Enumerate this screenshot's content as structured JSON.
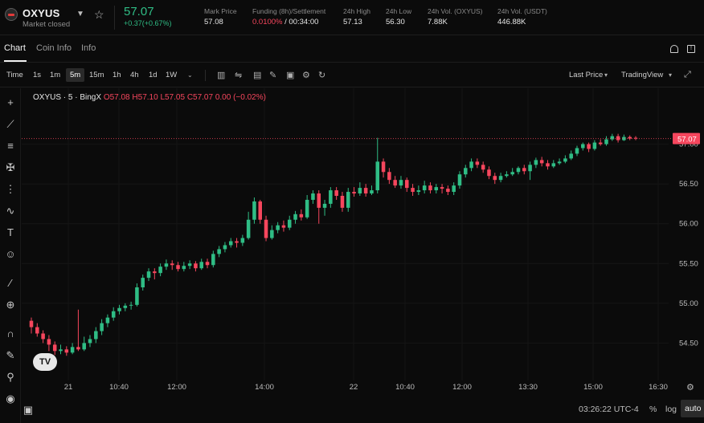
{
  "header": {
    "symbol": "OXYUS",
    "market_status": "Market closed",
    "last_price": "57.07",
    "change": "+0.37(+0.67%)",
    "stats": [
      {
        "label": "Mark Price",
        "value": "57.08"
      },
      {
        "label": "Funding (8h)/Settlement",
        "value_red": "0.0100%",
        "value": " / 00:34:00"
      },
      {
        "label": "24h High",
        "value": "57.13"
      },
      {
        "label": "24h Low",
        "value": "56.30"
      },
      {
        "label": "24h Vol. (OXYUS)",
        "value": "7.88K"
      },
      {
        "label": "24h Vol. (USDT)",
        "value": "446.88K"
      }
    ]
  },
  "tabs": [
    "Chart",
    "Coin Info",
    "Info"
  ],
  "toolbar": {
    "time_label": "Time",
    "intervals": [
      "1s",
      "1m",
      "5m",
      "15m",
      "1h",
      "4h",
      "1d",
      "1W"
    ],
    "active_interval": "5m",
    "price_type": "Last Price",
    "view": "TradingView"
  },
  "legend": {
    "title": "OXYUS · 5 · BingX",
    "o": "O57.08",
    "h": "H57.10",
    "l": "L57.05",
    "c": "C57.07",
    "chg": "0.00 (−0.02%)"
  },
  "bottom": {
    "clock": "03:26:22 UTC-4",
    "percent": "%",
    "log": "log",
    "auto": "auto"
  },
  "chart_data": {
    "type": "candlestick",
    "y_ticks": [
      54.5,
      55.0,
      55.5,
      56.0,
      56.5,
      57.0
    ],
    "ylim": [
      54.05,
      57.5
    ],
    "x_ticks": [
      "21",
      "10:40",
      "12:00",
      "14:00",
      "22",
      "10:40",
      "12:00",
      "13:30",
      "15:00",
      "16:30"
    ],
    "last_price_label": "57.07",
    "last_price": 57.07,
    "candles": [
      [
        54.78,
        54.7,
        54.82,
        54.62
      ],
      [
        54.7,
        54.62,
        54.75,
        54.58
      ],
      [
        54.62,
        54.55,
        54.66,
        54.5
      ],
      [
        54.55,
        54.48,
        54.6,
        54.4
      ],
      [
        54.48,
        54.4,
        54.52,
        54.35
      ],
      [
        54.4,
        54.42,
        54.48,
        54.36
      ],
      [
        54.42,
        54.38,
        54.46,
        54.34
      ],
      [
        54.38,
        54.45,
        54.5,
        54.36
      ],
      [
        54.45,
        54.42,
        54.92,
        54.4
      ],
      [
        54.42,
        54.5,
        54.58,
        54.4
      ],
      [
        54.5,
        54.55,
        54.6,
        54.45
      ],
      [
        54.55,
        54.65,
        54.7,
        54.5
      ],
      [
        54.65,
        54.75,
        54.8,
        54.6
      ],
      [
        54.75,
        54.82,
        54.86,
        54.7
      ],
      [
        54.82,
        54.9,
        54.95,
        54.78
      ],
      [
        54.9,
        54.94,
        54.98,
        54.86
      ],
      [
        54.94,
        54.97,
        55.0,
        54.9
      ],
      [
        54.97,
        54.98,
        55.02,
        54.92
      ],
      [
        54.98,
        55.2,
        55.25,
        54.96
      ],
      [
        55.2,
        55.32,
        55.36,
        55.16
      ],
      [
        55.32,
        55.4,
        55.44,
        55.28
      ],
      [
        55.4,
        55.38,
        55.44,
        55.3
      ],
      [
        55.38,
        55.46,
        55.5,
        55.34
      ],
      [
        55.46,
        55.5,
        55.55,
        55.42
      ],
      [
        55.5,
        55.48,
        55.54,
        55.42
      ],
      [
        55.48,
        55.43,
        55.52,
        55.4
      ],
      [
        55.43,
        55.47,
        55.52,
        55.4
      ],
      [
        55.47,
        55.5,
        55.54,
        55.43
      ],
      [
        55.5,
        55.44,
        55.53,
        55.4
      ],
      [
        55.44,
        55.52,
        55.56,
        55.42
      ],
      [
        55.52,
        55.48,
        55.56,
        55.44
      ],
      [
        55.48,
        55.62,
        55.66,
        55.45
      ],
      [
        55.62,
        55.68,
        55.72,
        55.58
      ],
      [
        55.68,
        55.73,
        55.77,
        55.64
      ],
      [
        55.73,
        55.78,
        55.82,
        55.7
      ],
      [
        55.78,
        55.76,
        55.82,
        55.7
      ],
      [
        55.76,
        55.82,
        55.86,
        55.72
      ],
      [
        55.82,
        56.05,
        56.15,
        55.8
      ],
      [
        56.05,
        56.28,
        56.33,
        56.0
      ],
      [
        56.28,
        56.05,
        56.3,
        56.0
      ],
      [
        56.05,
        55.82,
        56.1,
        55.78
      ],
      [
        55.82,
        55.92,
        55.98,
        55.8
      ],
      [
        55.92,
        55.98,
        56.02,
        55.88
      ],
      [
        55.98,
        55.95,
        56.04,
        55.9
      ],
      [
        55.95,
        56.05,
        56.1,
        55.92
      ],
      [
        56.05,
        56.12,
        56.16,
        56.0
      ],
      [
        56.12,
        56.08,
        56.18,
        56.04
      ],
      [
        56.08,
        56.3,
        56.36,
        56.06
      ],
      [
        56.3,
        56.38,
        56.42,
        56.25
      ],
      [
        56.38,
        56.2,
        56.42,
        56.0
      ],
      [
        56.2,
        56.25,
        56.3,
        56.1
      ],
      [
        56.25,
        56.42,
        56.46,
        56.2
      ],
      [
        56.42,
        56.35,
        56.46,
        56.3
      ],
      [
        56.35,
        56.2,
        56.4,
        56.15
      ],
      [
        56.2,
        56.4,
        56.45,
        56.15
      ],
      [
        56.4,
        56.38,
        56.46,
        56.34
      ],
      [
        56.38,
        56.45,
        56.52,
        56.35
      ],
      [
        56.45,
        56.38,
        56.5,
        56.34
      ],
      [
        56.38,
        56.42,
        56.48,
        56.36
      ],
      [
        56.42,
        56.78,
        57.08,
        56.38
      ],
      [
        56.78,
        56.65,
        56.82,
        56.58
      ],
      [
        56.65,
        56.55,
        56.7,
        56.5
      ],
      [
        56.55,
        56.48,
        56.6,
        56.45
      ],
      [
        56.48,
        56.55,
        56.6,
        56.44
      ],
      [
        56.55,
        56.45,
        56.58,
        56.4
      ],
      [
        56.45,
        56.4,
        56.5,
        56.35
      ],
      [
        56.4,
        56.42,
        56.48,
        56.36
      ],
      [
        56.42,
        56.48,
        56.54,
        56.38
      ],
      [
        56.48,
        56.42,
        56.52,
        56.38
      ],
      [
        56.42,
        56.46,
        56.5,
        56.38
      ],
      [
        56.46,
        56.44,
        56.5,
        56.38
      ],
      [
        56.44,
        56.4,
        56.48,
        56.36
      ],
      [
        56.4,
        56.48,
        56.52,
        56.36
      ],
      [
        56.48,
        56.62,
        56.66,
        56.44
      ],
      [
        56.62,
        56.7,
        56.74,
        56.58
      ],
      [
        56.7,
        56.78,
        56.82,
        56.66
      ],
      [
        56.78,
        56.74,
        56.82,
        56.7
      ],
      [
        56.74,
        56.68,
        56.78,
        56.64
      ],
      [
        56.68,
        56.6,
        56.72,
        56.56
      ],
      [
        56.6,
        56.55,
        56.64,
        56.5
      ],
      [
        56.55,
        56.6,
        56.64,
        56.52
      ],
      [
        56.6,
        56.62,
        56.66,
        56.58
      ],
      [
        56.62,
        56.65,
        56.7,
        56.6
      ],
      [
        56.65,
        56.7,
        56.72,
        56.62
      ],
      [
        56.7,
        56.66,
        56.74,
        56.62
      ],
      [
        56.66,
        56.74,
        56.78,
        56.55
      ],
      [
        56.74,
        56.8,
        56.83,
        56.7
      ],
      [
        56.8,
        56.76,
        56.84,
        56.72
      ],
      [
        56.76,
        56.72,
        56.8,
        56.68
      ],
      [
        56.72,
        56.76,
        56.8,
        56.7
      ],
      [
        56.76,
        56.78,
        56.82,
        56.74
      ],
      [
        56.78,
        56.82,
        56.86,
        56.76
      ],
      [
        56.82,
        56.88,
        56.92,
        56.8
      ],
      [
        56.88,
        56.95,
        56.98,
        56.85
      ],
      [
        56.95,
        57.0,
        57.02,
        56.92
      ],
      [
        57.0,
        56.94,
        57.02,
        56.9
      ],
      [
        56.94,
        57.02,
        57.05,
        56.92
      ],
      [
        57.02,
        57.0,
        57.06,
        56.98
      ],
      [
        57.0,
        57.06,
        57.1,
        56.98
      ],
      [
        57.06,
        57.1,
        57.13,
        57.04
      ],
      [
        57.1,
        57.05,
        57.13,
        57.02
      ],
      [
        57.05,
        57.09,
        57.12,
        57.04
      ],
      [
        57.09,
        57.07,
        57.11,
        57.05
      ],
      [
        57.08,
        57.07,
        57.1,
        57.05
      ]
    ]
  }
}
